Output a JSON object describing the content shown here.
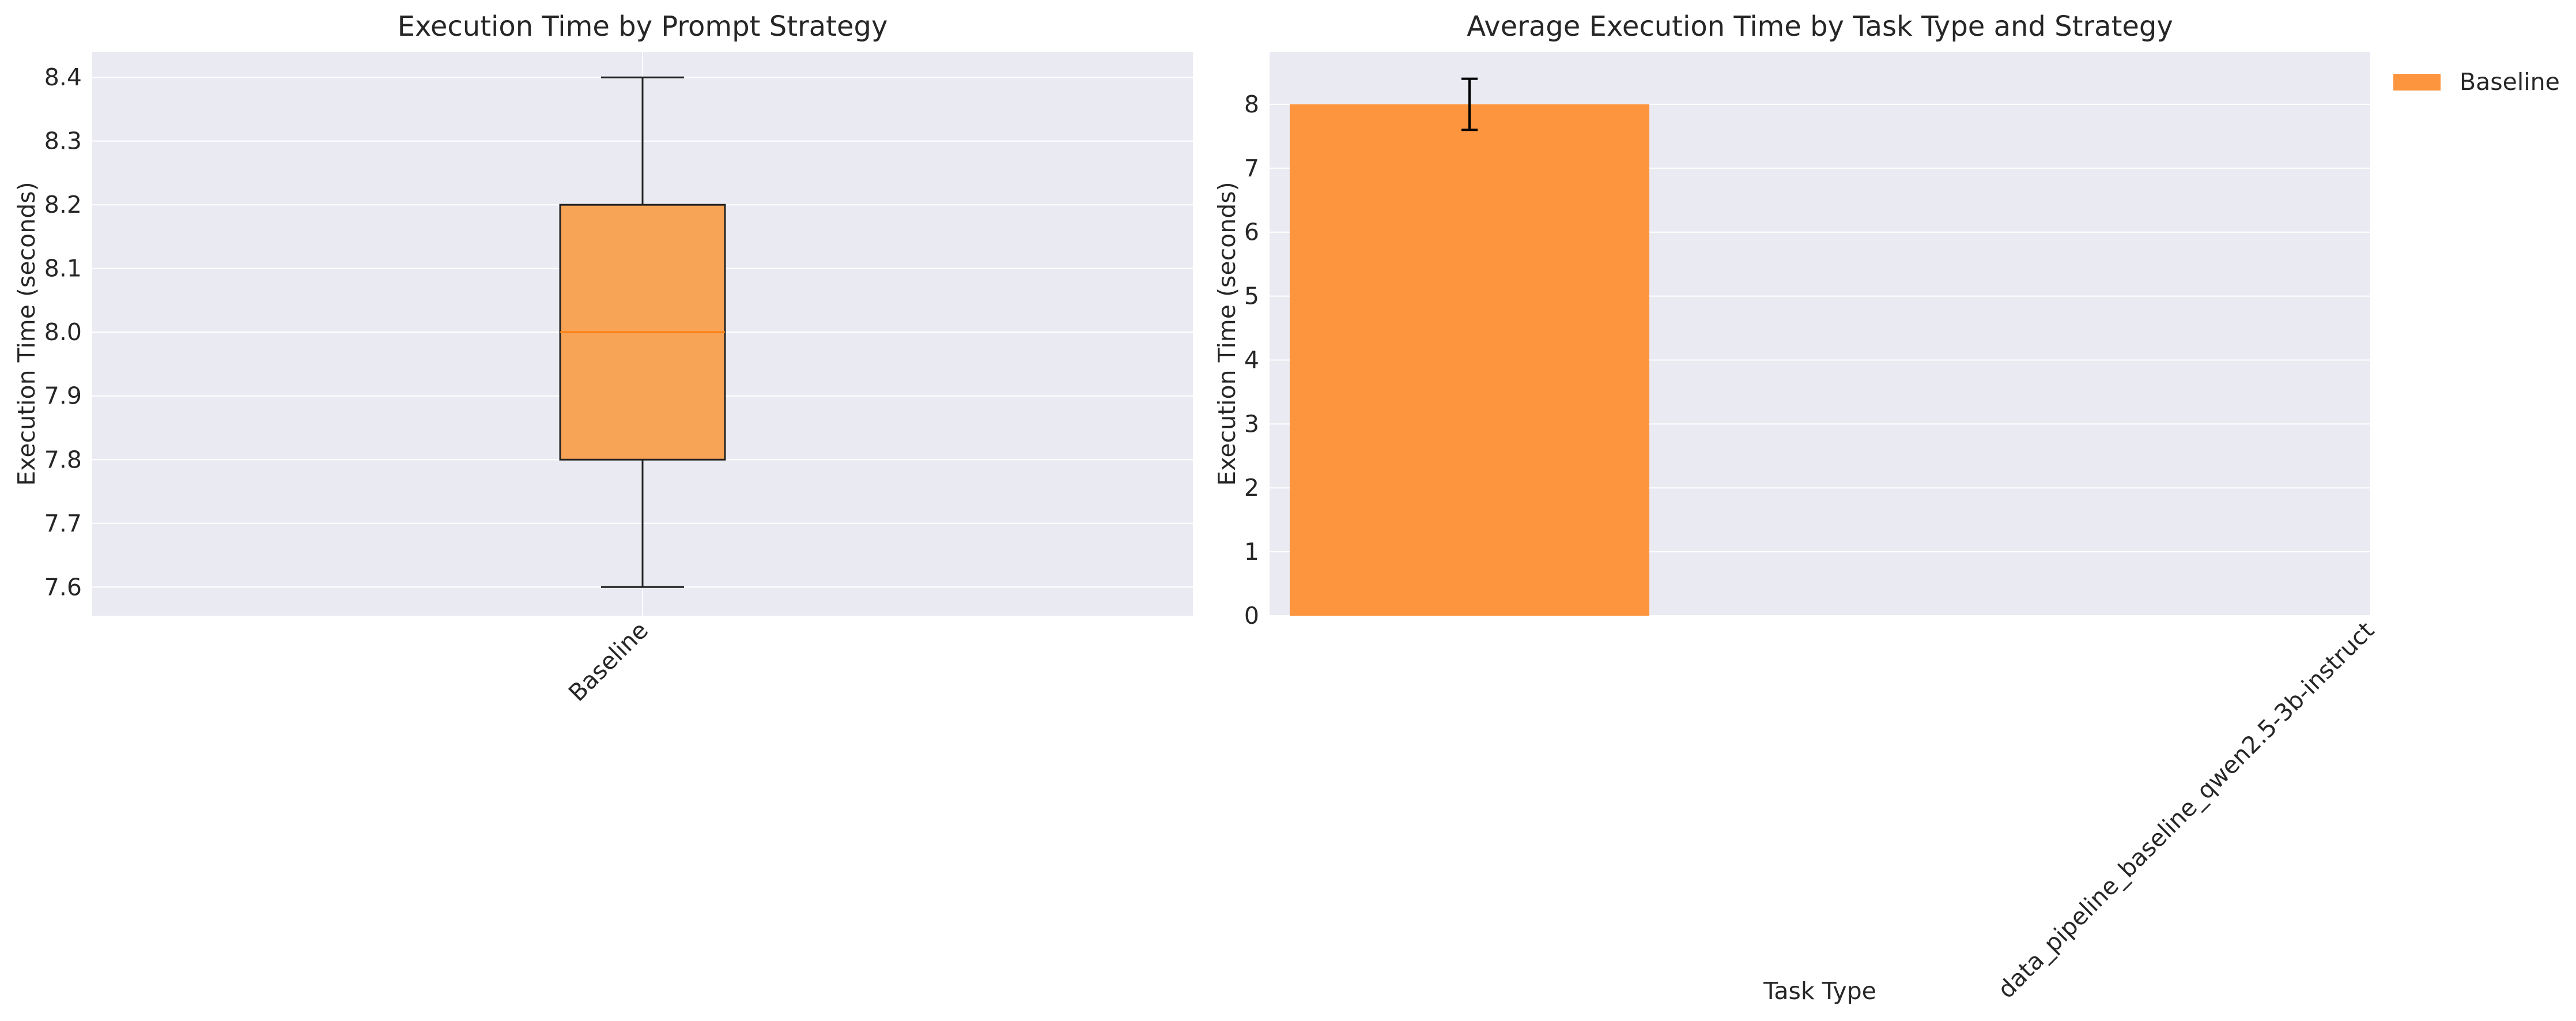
{
  "colors": {
    "background": "#ffffff",
    "plot_background": "#eaeaf2",
    "grid": "#ffffff",
    "bar": "#fd953f",
    "box_fill": "#f8a457",
    "median": "#ff7f0e",
    "edge": "#222222",
    "text": "#262626"
  },
  "chart_data": [
    {
      "type": "box",
      "title": "Execution Time by Prompt Strategy",
      "xlabel": "",
      "ylabel": "Execution Time (seconds)",
      "categories": [
        "Baseline"
      ],
      "boxes": [
        {
          "category": "Baseline",
          "whisker_low": 7.6,
          "q1": 7.8,
          "median": 8.0,
          "q3": 8.2,
          "whisker_high": 8.4
        }
      ],
      "ylim": [
        7.555,
        8.44
      ],
      "yticks": [
        7.6,
        7.7,
        7.8,
        7.9,
        8.0,
        8.1,
        8.2,
        8.3,
        8.4
      ],
      "grid": true
    },
    {
      "type": "bar",
      "title": "Average Execution Time by Task Type and Strategy",
      "xlabel": "Task Type",
      "ylabel": "Execution Time (seconds)",
      "categories": [
        "data_pipeline_baseline_qwen2.5-3b-instruct"
      ],
      "series": [
        {
          "name": "Baseline",
          "values": [
            8.0
          ],
          "error": [
            0.4
          ]
        }
      ],
      "ylim": [
        0,
        8.82
      ],
      "yticks": [
        0,
        1,
        2,
        3,
        4,
        5,
        6,
        7,
        8
      ],
      "grid": true,
      "legend": "outside-top-right"
    }
  ]
}
